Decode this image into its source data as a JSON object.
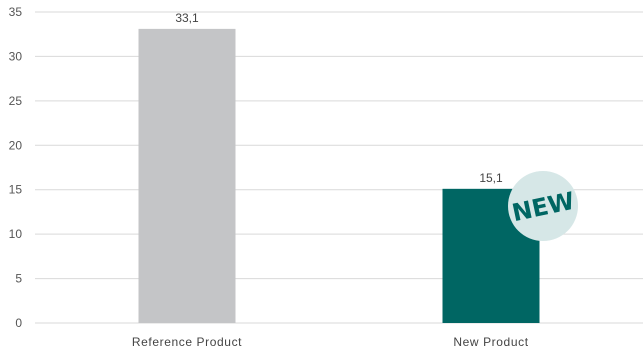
{
  "chart_data": {
    "type": "bar",
    "categories": [
      "Reference Product",
      "New Product"
    ],
    "values": [
      33.1,
      15.1
    ],
    "data_labels": [
      "33,1",
      "15,1"
    ],
    "ylim": [
      0,
      35
    ],
    "yticks": [
      0,
      5,
      10,
      15,
      20,
      25,
      30,
      35
    ],
    "title": "",
    "xlabel": "",
    "ylabel": "",
    "grid": true,
    "colors": [
      "#c4c5c7",
      "#006663"
    ],
    "badge": {
      "text": "NEW",
      "fill": "#d6e7e7",
      "text_color": "#006663"
    }
  }
}
